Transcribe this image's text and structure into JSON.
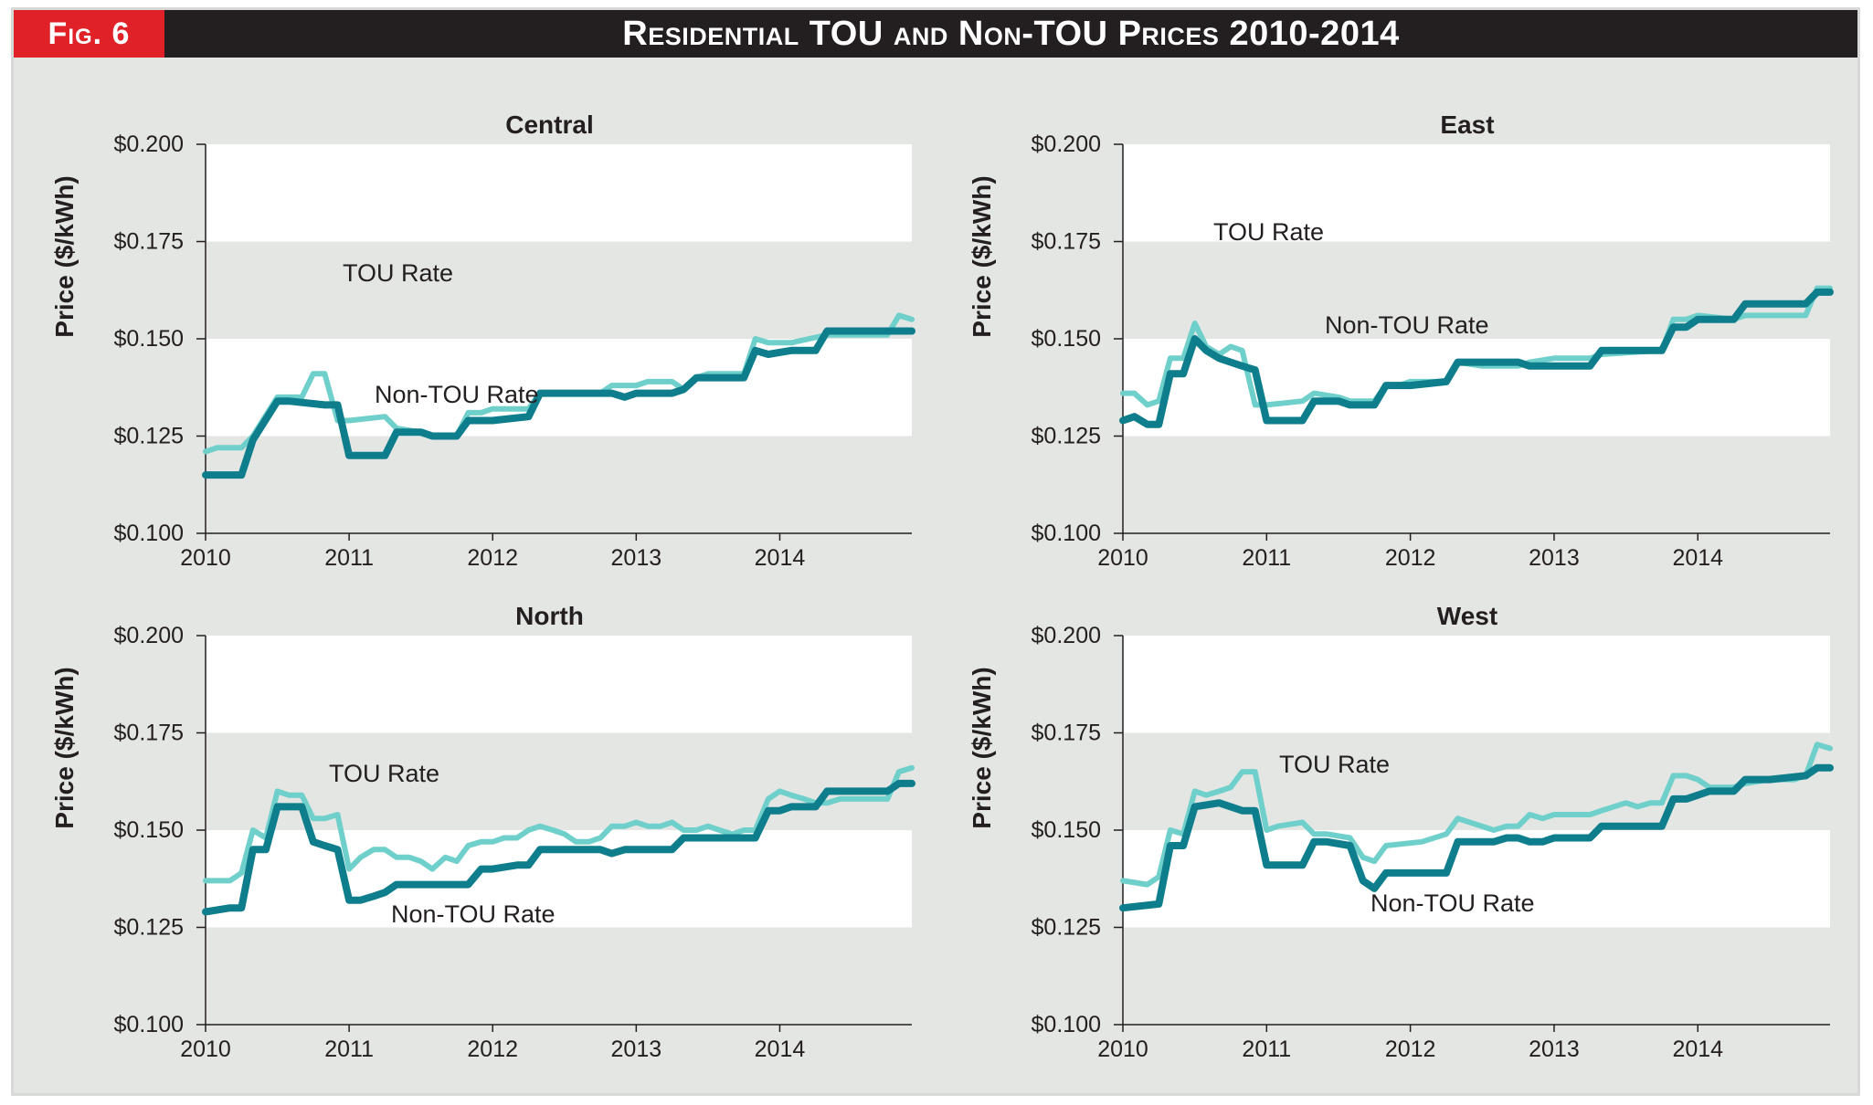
{
  "figure": {
    "label": "Fig. 6",
    "title": "Residential TOU and Non-TOU Prices 2010-2014",
    "colors": {
      "tou": "#6fcfca",
      "non_tou": "#0e7d8c",
      "band": "#e3e6e3",
      "plot_bg": "#ffffff",
      "header_bg": "#231f20",
      "label_bg": "#e02128"
    }
  },
  "chart_data": [
    {
      "type": "line",
      "title": "Central",
      "ylabel": "Price ($/kWh)",
      "xlabel": "",
      "ylim": [
        0.1,
        0.2
      ],
      "xlim": [
        2010,
        2014.92
      ],
      "yticks": [
        "$0.100",
        "$0.125",
        "$0.150",
        "$0.175",
        "$0.200"
      ],
      "xticks": [
        "2010",
        "2011",
        "2012",
        "2013",
        "2014"
      ],
      "annotations": {
        "tou": "TOU Rate",
        "non_tou": "Non-TOU Rate"
      },
      "series": [
        {
          "key": "tou",
          "x": [
            2010.0,
            2010.08,
            2010.25,
            2010.33,
            2010.5,
            2010.58,
            2010.67,
            2010.75,
            2010.83,
            2010.92,
            2011.0,
            2011.25,
            2011.33,
            2011.5,
            2011.58,
            2011.75,
            2011.83,
            2011.92,
            2012.0,
            2012.08,
            2012.25,
            2012.33,
            2012.5,
            2012.67,
            2012.75,
            2012.83,
            2013.0,
            2013.08,
            2013.25,
            2013.33,
            2013.42,
            2013.5,
            2013.58,
            2013.75,
            2013.83,
            2013.92,
            2014.08,
            2014.33,
            2014.75,
            2014.83,
            2014.92
          ],
          "values": [
            0.121,
            0.122,
            0.122,
            0.125,
            0.135,
            0.135,
            0.135,
            0.141,
            0.141,
            0.129,
            0.129,
            0.13,
            0.127,
            0.126,
            0.125,
            0.125,
            0.131,
            0.131,
            0.132,
            0.132,
            0.132,
            0.136,
            0.136,
            0.136,
            0.136,
            0.138,
            0.138,
            0.139,
            0.139,
            0.137,
            0.14,
            0.141,
            0.141,
            0.141,
            0.15,
            0.149,
            0.149,
            0.151,
            0.151,
            0.156,
            0.155
          ]
        },
        {
          "key": "non_tou",
          "x": [
            2010.0,
            2010.25,
            2010.33,
            2010.5,
            2010.58,
            2010.83,
            2010.92,
            2011.0,
            2011.25,
            2011.33,
            2011.5,
            2011.58,
            2011.75,
            2011.83,
            2011.92,
            2012.0,
            2012.25,
            2012.33,
            2012.5,
            2012.75,
            2012.83,
            2012.92,
            2013.0,
            2013.08,
            2013.25,
            2013.33,
            2013.42,
            2013.5,
            2013.75,
            2013.83,
            2013.92,
            2014.08,
            2014.25,
            2014.33,
            2014.75,
            2014.83,
            2014.92
          ],
          "values": [
            0.115,
            0.115,
            0.124,
            0.134,
            0.134,
            0.133,
            0.133,
            0.12,
            0.12,
            0.126,
            0.126,
            0.125,
            0.125,
            0.129,
            0.129,
            0.129,
            0.13,
            0.136,
            0.136,
            0.136,
            0.136,
            0.135,
            0.136,
            0.136,
            0.136,
            0.137,
            0.14,
            0.14,
            0.14,
            0.147,
            0.146,
            0.147,
            0.147,
            0.152,
            0.152,
            0.152,
            0.152
          ]
        }
      ]
    },
    {
      "type": "line",
      "title": "East",
      "ylabel": "Price ($/kWh)",
      "xlabel": "",
      "ylim": [
        0.1,
        0.2
      ],
      "xlim": [
        2010,
        2014.92
      ],
      "yticks": [
        "$0.100",
        "$0.125",
        "$0.150",
        "$0.175",
        "$0.200"
      ],
      "xticks": [
        "2010",
        "2011",
        "2012",
        "2013",
        "2014"
      ],
      "annotations": {
        "tou": "TOU Rate",
        "non_tou": "Non-TOU Rate"
      },
      "series": [
        {
          "key": "tou",
          "x": [
            2010.0,
            2010.08,
            2010.17,
            2010.25,
            2010.33,
            2010.42,
            2010.5,
            2010.58,
            2010.67,
            2010.75,
            2010.83,
            2010.92,
            2011.0,
            2011.25,
            2011.33,
            2011.5,
            2011.58,
            2011.75,
            2011.83,
            2011.92,
            2012.0,
            2012.25,
            2012.33,
            2012.5,
            2012.75,
            2012.83,
            2013.0,
            2013.25,
            2013.33,
            2013.75,
            2013.83,
            2013.92,
            2014.0,
            2014.25,
            2014.33,
            2014.75,
            2014.83,
            2014.92
          ],
          "values": [
            0.136,
            0.136,
            0.133,
            0.134,
            0.145,
            0.145,
            0.154,
            0.148,
            0.146,
            0.148,
            0.147,
            0.133,
            0.133,
            0.134,
            0.136,
            0.135,
            0.134,
            0.134,
            0.138,
            0.138,
            0.139,
            0.139,
            0.144,
            0.143,
            0.143,
            0.144,
            0.145,
            0.145,
            0.146,
            0.147,
            0.155,
            0.155,
            0.156,
            0.155,
            0.156,
            0.156,
            0.163,
            0.163
          ]
        },
        {
          "key": "non_tou",
          "x": [
            2010.0,
            2010.08,
            2010.17,
            2010.25,
            2010.33,
            2010.42,
            2010.5,
            2010.58,
            2010.67,
            2010.75,
            2010.83,
            2010.92,
            2011.0,
            2011.25,
            2011.33,
            2011.5,
            2011.58,
            2011.75,
            2011.83,
            2011.92,
            2012.0,
            2012.25,
            2012.33,
            2012.5,
            2012.75,
            2012.83,
            2013.0,
            2013.25,
            2013.33,
            2013.75,
            2013.83,
            2013.92,
            2014.0,
            2014.25,
            2014.33,
            2014.75,
            2014.83,
            2014.92
          ],
          "values": [
            0.129,
            0.13,
            0.128,
            0.128,
            0.141,
            0.141,
            0.15,
            0.147,
            0.145,
            0.144,
            0.143,
            0.142,
            0.129,
            0.129,
            0.134,
            0.134,
            0.133,
            0.133,
            0.138,
            0.138,
            0.138,
            0.139,
            0.144,
            0.144,
            0.144,
            0.143,
            0.143,
            0.143,
            0.147,
            0.147,
            0.153,
            0.153,
            0.155,
            0.155,
            0.159,
            0.159,
            0.162,
            0.162
          ]
        }
      ]
    },
    {
      "type": "line",
      "title": "North",
      "ylabel": "Price ($/kWh)",
      "xlabel": "",
      "ylim": [
        0.1,
        0.2
      ],
      "xlim": [
        2010,
        2014.92
      ],
      "yticks": [
        "$0.100",
        "$0.125",
        "$0.150",
        "$0.175",
        "$0.200"
      ],
      "xticks": [
        "2010",
        "2011",
        "2012",
        "2013",
        "2014"
      ],
      "annotations": {
        "tou": "TOU Rate",
        "non_tou": "Non-TOU Rate"
      },
      "series": [
        {
          "key": "tou",
          "x": [
            2010.0,
            2010.17,
            2010.25,
            2010.33,
            2010.42,
            2010.5,
            2010.58,
            2010.67,
            2010.75,
            2010.83,
            2010.92,
            2011.0,
            2011.08,
            2011.17,
            2011.25,
            2011.33,
            2011.42,
            2011.5,
            2011.58,
            2011.67,
            2011.75,
            2011.83,
            2011.92,
            2012.0,
            2012.08,
            2012.17,
            2012.25,
            2012.33,
            2012.42,
            2012.5,
            2012.58,
            2012.67,
            2012.75,
            2012.83,
            2012.92,
            2013.0,
            2013.08,
            2013.17,
            2013.25,
            2013.33,
            2013.42,
            2013.5,
            2013.58,
            2013.67,
            2013.75,
            2013.83,
            2013.92,
            2014.0,
            2014.08,
            2014.17,
            2014.25,
            2014.33,
            2014.42,
            2014.5,
            2014.58,
            2014.67,
            2014.75,
            2014.83,
            2014.92
          ],
          "values": [
            0.137,
            0.137,
            0.139,
            0.15,
            0.148,
            0.16,
            0.159,
            0.159,
            0.153,
            0.153,
            0.154,
            0.14,
            0.143,
            0.145,
            0.145,
            0.143,
            0.143,
            0.142,
            0.14,
            0.143,
            0.142,
            0.146,
            0.147,
            0.147,
            0.148,
            0.148,
            0.15,
            0.151,
            0.15,
            0.149,
            0.147,
            0.147,
            0.148,
            0.151,
            0.151,
            0.152,
            0.151,
            0.151,
            0.152,
            0.15,
            0.15,
            0.151,
            0.15,
            0.149,
            0.15,
            0.15,
            0.158,
            0.16,
            0.159,
            0.158,
            0.157,
            0.157,
            0.158,
            0.158,
            0.158,
            0.158,
            0.158,
            0.165,
            0.166
          ]
        },
        {
          "key": "non_tou",
          "x": [
            2010.0,
            2010.17,
            2010.25,
            2010.33,
            2010.42,
            2010.5,
            2010.58,
            2010.67,
            2010.75,
            2010.83,
            2010.92,
            2011.0,
            2011.08,
            2011.17,
            2011.25,
            2011.33,
            2011.5,
            2011.75,
            2011.83,
            2011.92,
            2012.0,
            2012.17,
            2012.25,
            2012.33,
            2012.5,
            2012.75,
            2012.83,
            2012.92,
            2013.0,
            2013.25,
            2013.33,
            2013.5,
            2013.75,
            2013.83,
            2013.92,
            2014.0,
            2014.08,
            2014.25,
            2014.33,
            2014.5,
            2014.75,
            2014.83,
            2014.92
          ],
          "values": [
            0.129,
            0.13,
            0.13,
            0.145,
            0.145,
            0.156,
            0.156,
            0.156,
            0.147,
            0.146,
            0.145,
            0.132,
            0.132,
            0.133,
            0.134,
            0.136,
            0.136,
            0.136,
            0.136,
            0.14,
            0.14,
            0.141,
            0.141,
            0.145,
            0.145,
            0.145,
            0.144,
            0.145,
            0.145,
            0.145,
            0.148,
            0.148,
            0.148,
            0.148,
            0.155,
            0.155,
            0.156,
            0.156,
            0.16,
            0.16,
            0.16,
            0.162,
            0.162
          ]
        }
      ]
    },
    {
      "type": "line",
      "title": "West",
      "ylabel": "Price ($/kWh)",
      "xlabel": "",
      "ylim": [
        0.1,
        0.2
      ],
      "xlim": [
        2010,
        2014.92
      ],
      "yticks": [
        "$0.100",
        "$0.125",
        "$0.150",
        "$0.175",
        "$0.200"
      ],
      "xticks": [
        "2010",
        "2011",
        "2012",
        "2013",
        "2014"
      ],
      "annotations": {
        "tou": "TOU Rate",
        "non_tou": "Non-TOU Rate"
      },
      "series": [
        {
          "key": "tou",
          "x": [
            2010.0,
            2010.17,
            2010.25,
            2010.33,
            2010.42,
            2010.5,
            2010.58,
            2010.67,
            2010.75,
            2010.83,
            2010.92,
            2011.0,
            2011.08,
            2011.25,
            2011.33,
            2011.42,
            2011.58,
            2011.67,
            2011.75,
            2011.83,
            2012.08,
            2012.25,
            2012.33,
            2012.58,
            2012.67,
            2012.75,
            2012.83,
            2012.92,
            2013.0,
            2013.08,
            2013.25,
            2013.33,
            2013.5,
            2013.58,
            2013.67,
            2013.75,
            2013.83,
            2013.92,
            2014.0,
            2014.08,
            2014.17,
            2014.25,
            2014.33,
            2014.5,
            2014.67,
            2014.75,
            2014.83,
            2014.92
          ],
          "values": [
            0.137,
            0.136,
            0.138,
            0.15,
            0.149,
            0.16,
            0.159,
            0.16,
            0.161,
            0.165,
            0.165,
            0.15,
            0.151,
            0.152,
            0.149,
            0.149,
            0.148,
            0.143,
            0.142,
            0.146,
            0.147,
            0.149,
            0.153,
            0.15,
            0.151,
            0.151,
            0.154,
            0.153,
            0.154,
            0.154,
            0.154,
            0.155,
            0.157,
            0.156,
            0.157,
            0.157,
            0.164,
            0.164,
            0.163,
            0.161,
            0.161,
            0.161,
            0.162,
            0.163,
            0.163,
            0.164,
            0.172,
            0.171
          ]
        },
        {
          "key": "non_tou",
          "x": [
            2010.0,
            2010.25,
            2010.33,
            2010.42,
            2010.5,
            2010.67,
            2010.75,
            2010.83,
            2010.92,
            2011.0,
            2011.08,
            2011.25,
            2011.33,
            2011.42,
            2011.58,
            2011.67,
            2011.75,
            2011.83,
            2011.92,
            2012.08,
            2012.25,
            2012.33,
            2012.58,
            2012.67,
            2012.75,
            2012.83,
            2012.92,
            2013.0,
            2013.25,
            2013.33,
            2013.58,
            2013.67,
            2013.75,
            2013.83,
            2013.92,
            2014.0,
            2014.08,
            2014.25,
            2014.33,
            2014.5,
            2014.75,
            2014.83,
            2014.92
          ],
          "values": [
            0.13,
            0.131,
            0.146,
            0.146,
            0.156,
            0.157,
            0.156,
            0.155,
            0.155,
            0.141,
            0.141,
            0.141,
            0.147,
            0.147,
            0.146,
            0.137,
            0.135,
            0.139,
            0.139,
            0.139,
            0.139,
            0.147,
            0.147,
            0.148,
            0.148,
            0.147,
            0.147,
            0.148,
            0.148,
            0.151,
            0.151,
            0.151,
            0.151,
            0.158,
            0.158,
            0.159,
            0.16,
            0.16,
            0.163,
            0.163,
            0.164,
            0.166,
            0.166
          ]
        }
      ]
    }
  ]
}
